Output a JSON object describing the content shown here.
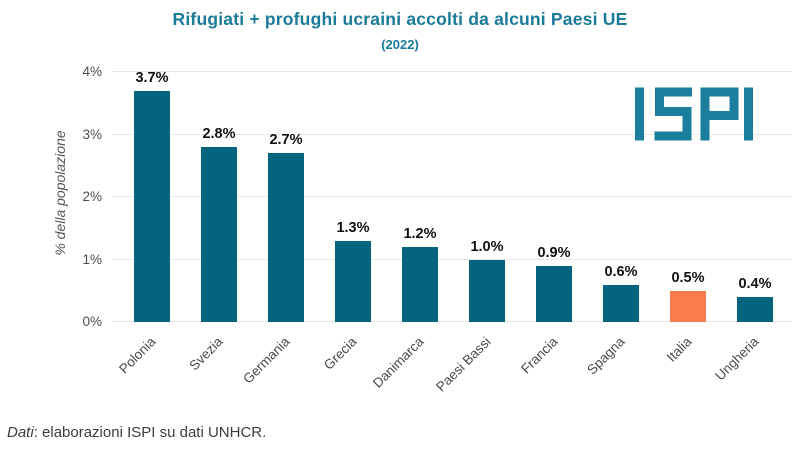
{
  "title": "Rifugiati + profughi ucraini accolti da alcuni Paesi UE",
  "subtitle": "(2022)",
  "logo_text": "ISPI",
  "footer": {
    "label_italic": "Dati",
    "text": ": elaborazioni ISPI su dati UNHCR."
  },
  "colors": {
    "bar": "#05647D",
    "highlight": "#FB7B4E",
    "title": "#1A7A99",
    "logo": "#1B7E9C",
    "grid": "#E9E9E9"
  },
  "chart_data": {
    "type": "bar",
    "title": "Rifugiati + profughi ucraini accolti da alcuni Paesi UE (2022)",
    "categories": [
      "Polonia",
      "Svezia",
      "Germania",
      "Grecia",
      "Danimarca",
      "Paesi Bassi",
      "Francia",
      "Spagna",
      "Italia",
      "Ungheria"
    ],
    "values": [
      3.7,
      2.8,
      2.7,
      1.3,
      1.2,
      1.0,
      0.9,
      0.6,
      0.5,
      0.4
    ],
    "value_labels": [
      "3.7%",
      "2.8%",
      "2.7%",
      "1.3%",
      "1.2%",
      "1.0%",
      "0.9%",
      "0.6%",
      "0.5%",
      "0.4%"
    ],
    "highlighted_category": "Italia",
    "xlabel": "",
    "ylabel": "% della popolazione",
    "ylim": [
      0,
      4
    ],
    "yticks": [
      "0%",
      "1%",
      "2%",
      "3%",
      "4%"
    ],
    "grid": "horizontal",
    "legend": "none"
  }
}
